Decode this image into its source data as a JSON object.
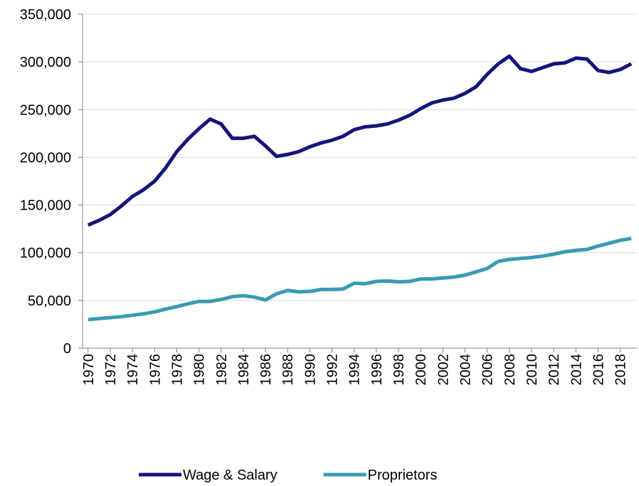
{
  "chart_data": {
    "type": "line",
    "x": [
      1970,
      1971,
      1972,
      1973,
      1974,
      1975,
      1976,
      1977,
      1978,
      1979,
      1980,
      1981,
      1982,
      1983,
      1984,
      1985,
      1986,
      1987,
      1988,
      1989,
      1990,
      1991,
      1992,
      1993,
      1994,
      1995,
      1996,
      1997,
      1998,
      1999,
      2000,
      2001,
      2002,
      2003,
      2004,
      2005,
      2006,
      2007,
      2008,
      2009,
      2010,
      2011,
      2012,
      2013,
      2014,
      2015,
      2016,
      2017,
      2018,
      2019
    ],
    "series": [
      {
        "name": "Wage & Salary",
        "color": "#14147a",
        "values": [
          129000,
          134000,
          140000,
          149000,
          159000,
          166000,
          175000,
          189000,
          206000,
          219000,
          230000,
          240000,
          235000,
          220000,
          220000,
          222000,
          212000,
          201000,
          203000,
          206000,
          211000,
          215000,
          218000,
          222000,
          229000,
          232000,
          233000,
          235000,
          239000,
          244000,
          251000,
          257000,
          260000,
          262000,
          267000,
          274000,
          287000,
          298000,
          306000,
          293000,
          290000,
          294000,
          298000,
          299000,
          304000,
          303000,
          291000,
          289000,
          292000,
          298000
        ]
      },
      {
        "name": "Proprietors",
        "color": "#3a9ab4",
        "values": [
          30000,
          31000,
          32000,
          33000,
          34500,
          36000,
          38000,
          41000,
          43500,
          46500,
          49000,
          49000,
          51000,
          54000,
          55000,
          53500,
          50500,
          57000,
          60500,
          59000,
          59500,
          61500,
          61500,
          62000,
          68000,
          67500,
          70000,
          70500,
          69500,
          70000,
          72500,
          72500,
          73500,
          74500,
          76500,
          80000,
          83500,
          91000,
          93000,
          94000,
          95000,
          96500,
          98500,
          101000,
          102500,
          103500,
          107000,
          110000,
          113000,
          115000
        ]
      }
    ],
    "xlim": [
      1969.5,
      2019.5
    ],
    "xticks": [
      1970,
      1972,
      1974,
      1976,
      1978,
      1980,
      1982,
      1984,
      1986,
      1988,
      1990,
      1992,
      1994,
      1996,
      1998,
      2000,
      2002,
      2004,
      2006,
      2008,
      2010,
      2012,
      2014,
      2016,
      2018
    ],
    "ylim": [
      0,
      350000
    ],
    "yticks": [
      0,
      {
        "value": 50000,
        "label": "50,000"
      },
      {
        "value": 100000,
        "label": "100,000"
      },
      {
        "value": 150000,
        "label": "150,000"
      },
      {
        "value": 200000,
        "label": "200,000"
      },
      {
        "value": 250000,
        "label": "250,000"
      },
      {
        "value": 300000,
        "label": "300,000"
      },
      {
        "value": 350000,
        "label": "350,000"
      }
    ],
    "grid": true,
    "legend": "bottom"
  }
}
